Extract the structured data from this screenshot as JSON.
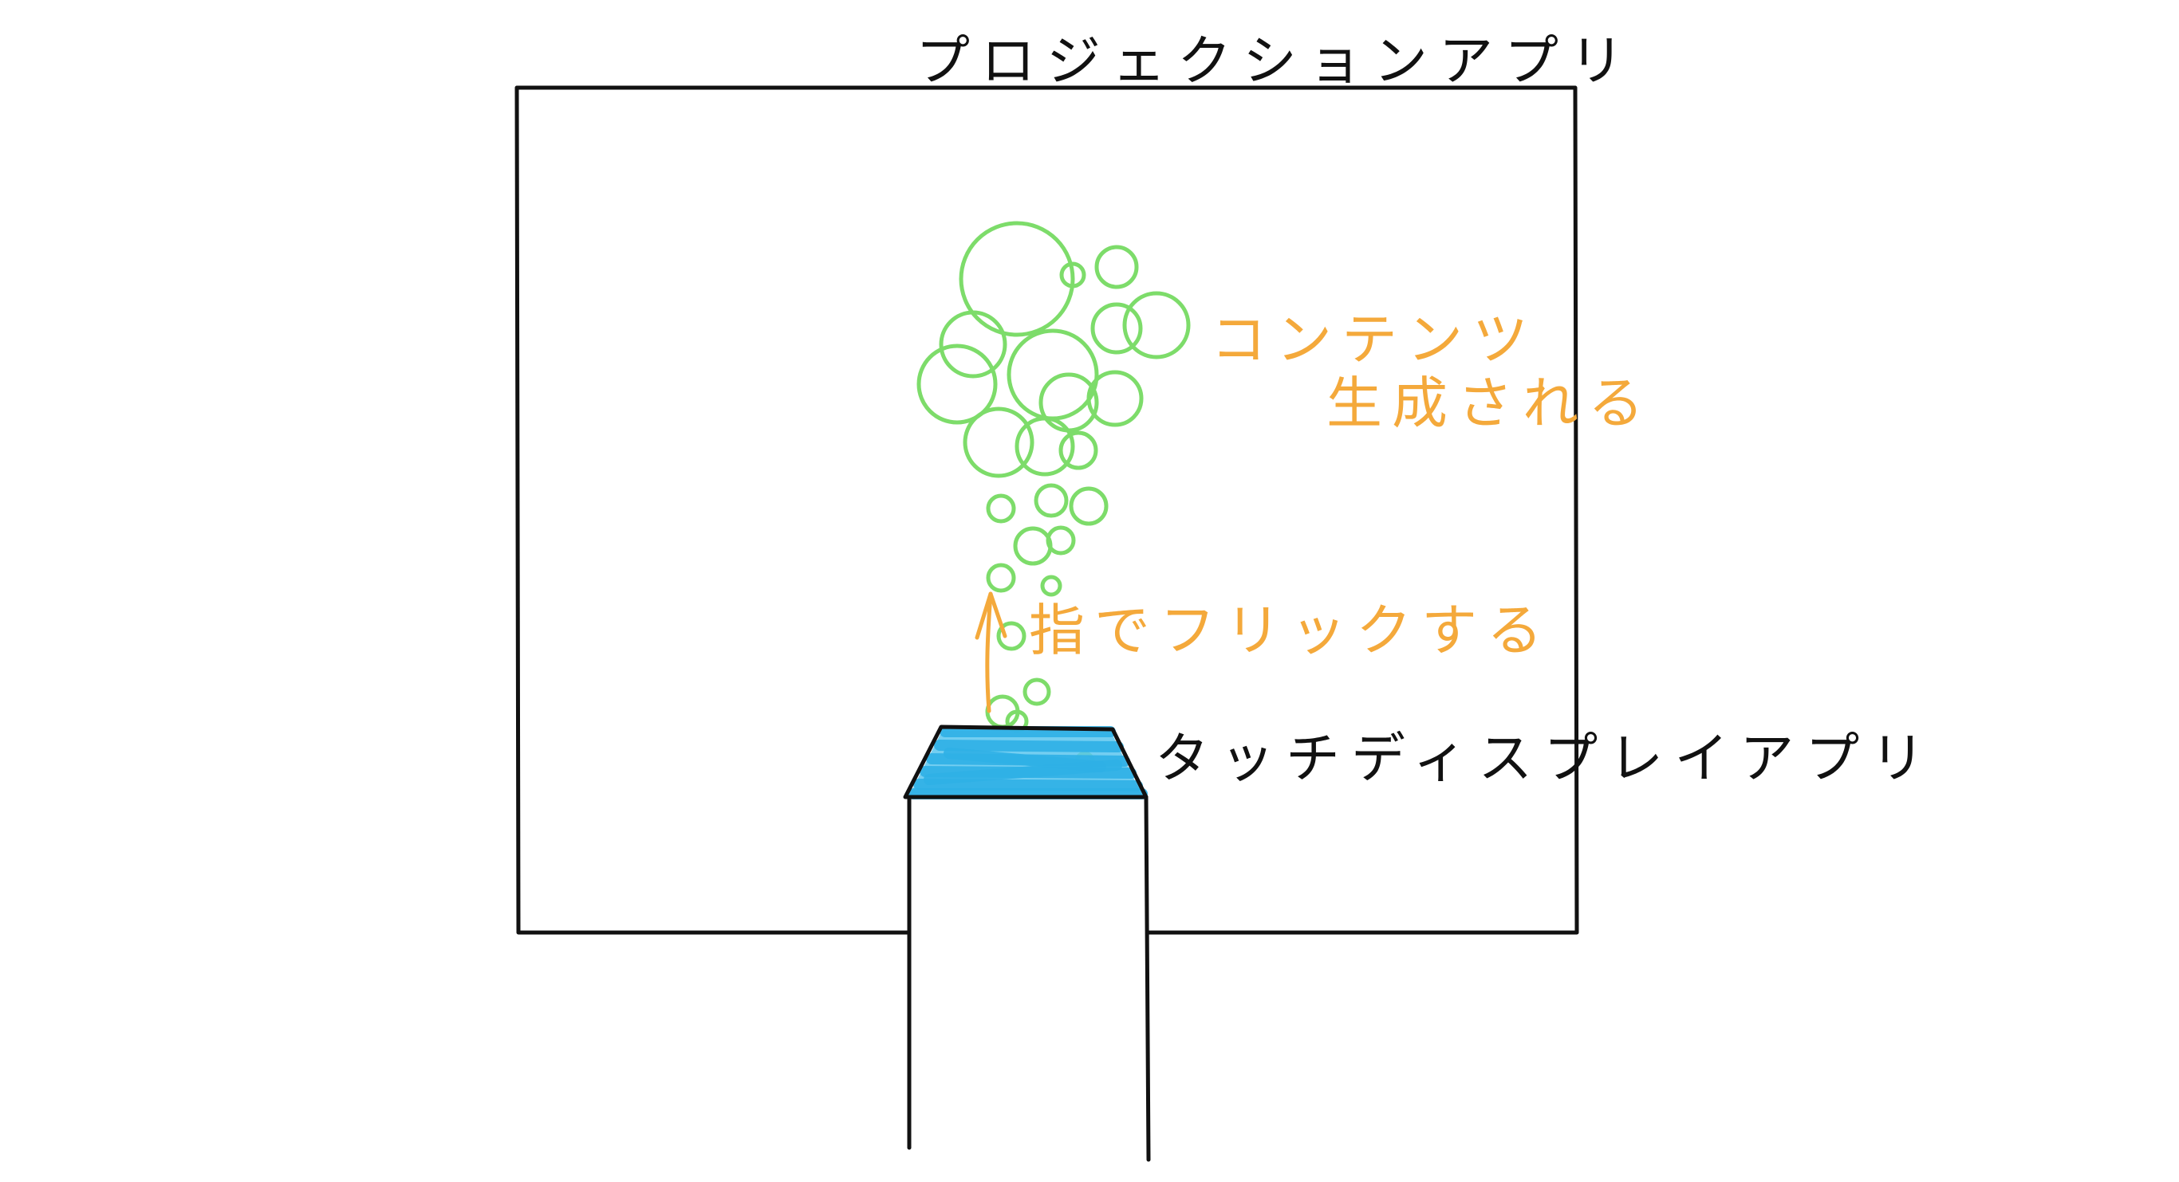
{
  "labels": {
    "projection_app": "プロジェクションアプリ",
    "content_line1": "コンテンツ",
    "content_line2": "生成される",
    "flick_with_finger": "指でフリックする",
    "touch_display_app": "タッチディスプレイアプリ"
  },
  "colors": {
    "line": "#111111",
    "bubble": "#7ddc6a",
    "annotation": "#f4a93b",
    "screen_fill": "#5bc6ef",
    "screen_stroke": "#2fb0e6"
  },
  "bubble_count": 26
}
